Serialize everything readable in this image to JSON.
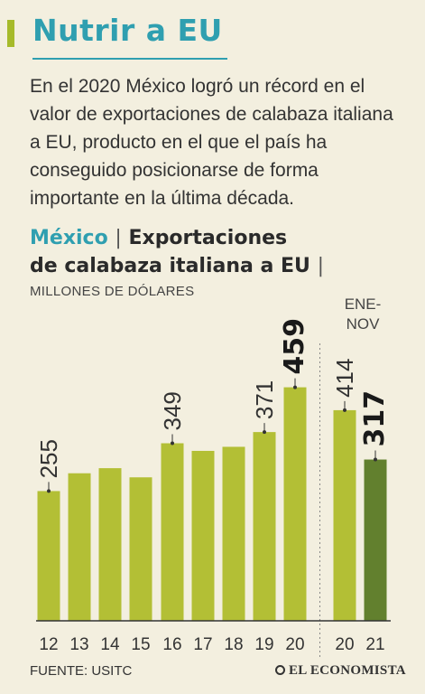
{
  "header": {
    "title": "Nutrir a EU",
    "intro": "En el 2020 México logró un récord en el valor de exportaciones de calabaza italiana a EU, producto en el que el país ha conseguido posicionarse de forma importante en la última década."
  },
  "chart_header": {
    "country": "México",
    "sep1": "|",
    "title_part1": "Exportaciones",
    "title_part2": "de calabaza italiana a EU",
    "sep2": "|",
    "units": "MILLONES DE DÓLARES",
    "period_line1": "ENE-",
    "period_line2": "NOV"
  },
  "chart_data": {
    "type": "bar",
    "categories": [
      "12",
      "13",
      "14",
      "15",
      "16",
      "17",
      "18",
      "19",
      "20",
      "20",
      "21"
    ],
    "values": [
      255,
      290,
      300,
      282,
      349,
      334,
      342,
      371,
      459,
      414,
      317
    ],
    "labels": [
      "255",
      "",
      "",
      "",
      "349",
      "",
      "",
      "371",
      "459",
      "414",
      "317"
    ],
    "bold_labels": [
      false,
      false,
      false,
      false,
      false,
      false,
      false,
      false,
      true,
      false,
      true
    ],
    "colors": {
      "bar": "#b3bf35",
      "highlight": "#62802e",
      "axis": "#333333"
    },
    "highlight_index": 10,
    "ylim": [
      0,
      520
    ],
    "period_split_after_index": 8,
    "grid": false,
    "xlabel": "",
    "ylabel": ""
  },
  "footer": {
    "source": "FUENTE: USITC",
    "logo_text": "EL ECONOMISTA"
  }
}
